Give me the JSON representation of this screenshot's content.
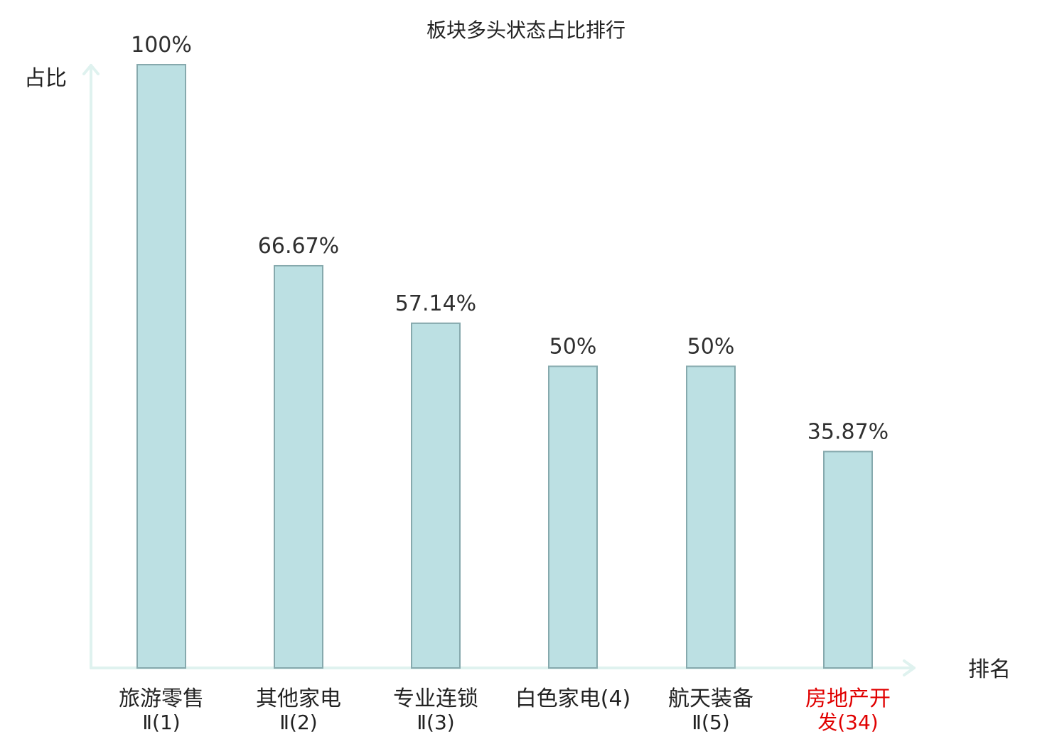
{
  "chart_data": {
    "type": "bar",
    "title": "板块多头状态占比排行",
    "xlabel": "排名",
    "ylabel": "占比",
    "ylim": [
      0,
      100
    ],
    "grid": false,
    "categories": [
      [
        "旅游零售",
        "Ⅱ(1)"
      ],
      [
        "其他家电",
        "Ⅱ(2)"
      ],
      [
        "专业连锁",
        "Ⅱ(3)"
      ],
      [
        "白色家电(4)"
      ],
      [
        "航天装备",
        "Ⅱ(5)"
      ],
      [
        "房地产开",
        "发(34)"
      ]
    ],
    "values": [
      100,
      66.67,
      57.14,
      50,
      50,
      35.87
    ],
    "value_labels": [
      "100%",
      "66.67%",
      "57.14%",
      "50%",
      "50%",
      "35.87%"
    ],
    "bar_color": "#bce0e3",
    "bar_stroke": "#86a9ad",
    "axis_color": "#dff2ef",
    "text_color": "#222222",
    "highlight_color": "#e00000",
    "highlight_indices": [
      5
    ]
  }
}
